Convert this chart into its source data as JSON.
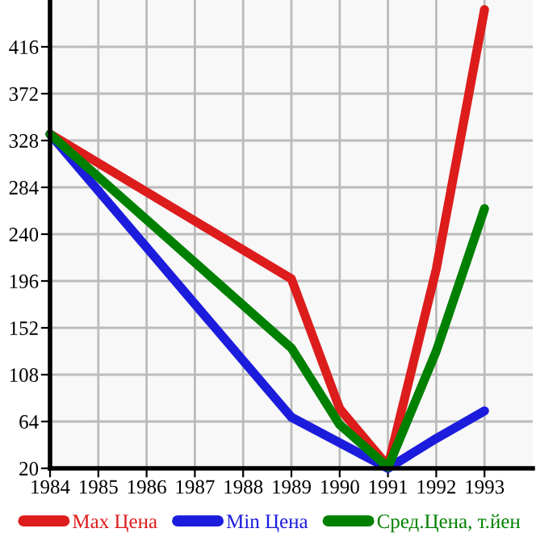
{
  "chart_data": {
    "type": "line",
    "x": [
      1984,
      1985,
      1986,
      1987,
      1988,
      1989,
      1990,
      1991,
      1992,
      1993
    ],
    "series": [
      {
        "name": "Max Цена",
        "color": "#dd1c1c",
        "values": [
          334,
          null,
          null,
          null,
          null,
          198,
          76,
          22,
          207,
          451
        ]
      },
      {
        "name": "Min Цена",
        "color": "#1c1cdd",
        "values": [
          334,
          null,
          null,
          null,
          null,
          68,
          44,
          20,
          48,
          74
        ]
      },
      {
        "name": "Сред.Цена, т.йен",
        "color": "#008000",
        "values": [
          334,
          null,
          null,
          null,
          null,
          133,
          61,
          21,
          130,
          264
        ]
      }
    ],
    "xlim": [
      1984,
      1994
    ],
    "xticks": [
      1984,
      1985,
      1986,
      1987,
      1988,
      1989,
      1990,
      1991,
      1992,
      1993
    ],
    "ylim": [
      20,
      460
    ],
    "yticks": [
      20,
      64,
      108,
      152,
      196,
      240,
      284,
      328,
      372,
      416
    ],
    "grid": true,
    "legend": "bottom",
    "marker": "none",
    "line_style": "solid"
  }
}
